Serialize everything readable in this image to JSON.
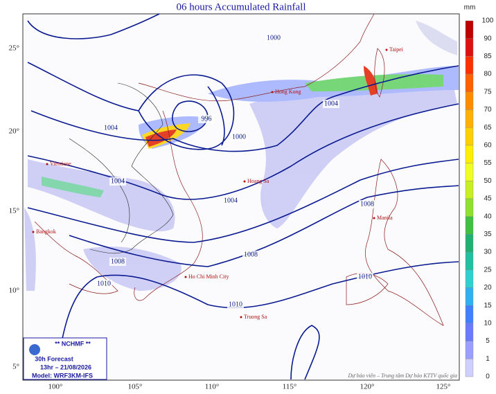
{
  "title": "06 hours Accumulated Rainfall",
  "legend": {
    "unit": "mm",
    "levels": [
      {
        "value": 100,
        "color": "#c00000"
      },
      {
        "value": 90,
        "color": "#e01010"
      },
      {
        "value": 85,
        "color": "#ff3000"
      },
      {
        "value": 80,
        "color": "#ff6000"
      },
      {
        "value": 75,
        "color": "#ff8c00"
      },
      {
        "value": 70,
        "color": "#ffb000"
      },
      {
        "value": 65,
        "color": "#ffd000"
      },
      {
        "value": 60,
        "color": "#ffee00"
      },
      {
        "value": 55,
        "color": "#f0ff20"
      },
      {
        "value": 50,
        "color": "#c8f020"
      },
      {
        "value": 45,
        "color": "#90e030"
      },
      {
        "value": 40,
        "color": "#40c040"
      },
      {
        "value": 35,
        "color": "#20b070"
      },
      {
        "value": 30,
        "color": "#20c0a0"
      },
      {
        "value": 25,
        "color": "#30d0d0"
      },
      {
        "value": 20,
        "color": "#30b0f0"
      },
      {
        "value": 15,
        "color": "#4080ff"
      },
      {
        "value": 10,
        "color": "#6a7aff"
      },
      {
        "value": 5,
        "color": "#9aa0ff"
      },
      {
        "value": 1,
        "color": "#cfd0ff"
      },
      {
        "value": 0,
        "color": "#ffffff"
      }
    ]
  },
  "axes": {
    "latitude": [
      "25°",
      "20°",
      "15°",
      "10°",
      "5°"
    ],
    "longitude": [
      "100°",
      "105°",
      "110°",
      "115°",
      "120°",
      "125°"
    ]
  },
  "isobars": [
    1000,
    996,
    1000,
    1004,
    1004,
    1004,
    1004,
    1008,
    1008,
    1008,
    1010,
    1010,
    1010
  ],
  "places": [
    "Taipei",
    "Hong Kong",
    "Vientiane",
    "Hoang Sa",
    "Manila",
    "Bangkok",
    "Ho Chi Minh City",
    "Truong Sa"
  ],
  "info": {
    "org": "** NCHMF **",
    "forecast": "30h Forecast",
    "time": "13hr – 21/08/2026",
    "model": "Model: WRF3KM-IFS"
  },
  "credit": "Dự báo viên – Trung tâm Dự báo KTTV quốc gia"
}
